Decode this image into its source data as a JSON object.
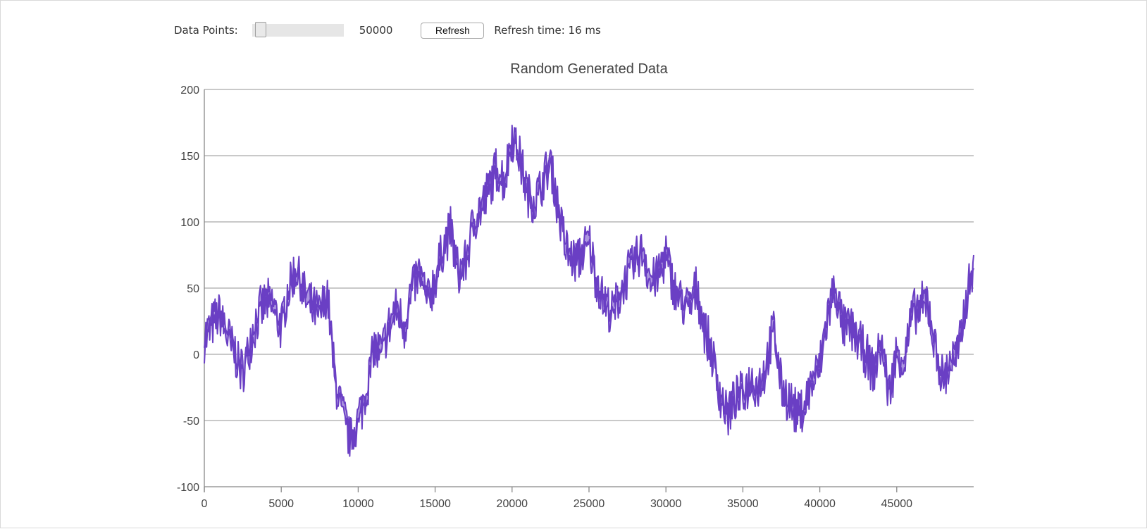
{
  "controls": {
    "points_label": "Data Points:",
    "points_value": "50000",
    "points_slider_fraction": 0.04,
    "refresh_label": "Refresh",
    "refresh_time": "Refresh time: 16 ms"
  },
  "chart_data": {
    "type": "area",
    "title": "Random Generated Data",
    "xlabel": "",
    "ylabel": "",
    "xlim": [
      0,
      50000
    ],
    "ylim": [
      -100,
      200
    ],
    "x_ticks": [
      0,
      5000,
      10000,
      15000,
      20000,
      25000,
      30000,
      35000,
      40000,
      45000
    ],
    "y_ticks": [
      200,
      150,
      100,
      50,
      0,
      -50,
      -100
    ],
    "grid": "horizontal",
    "legend": "none",
    "color": "#6a3fc4",
    "band_width": 10,
    "series": [
      {
        "x": [
          0,
          500,
          1000,
          1500,
          2000,
          2500,
          3000,
          3500,
          4000,
          4500,
          5000,
          5500,
          6000,
          6500,
          7000,
          7500,
          8000,
          8500,
          9000,
          9500,
          10000,
          10500,
          11000,
          11500,
          12000,
          12500,
          13000,
          13500,
          14000,
          14500,
          15000,
          15500,
          16000,
          16500,
          17000,
          17500,
          18000,
          18500,
          19000,
          19500,
          20000,
          20500,
          21000,
          21500,
          22000,
          22500,
          23000,
          23500,
          24000,
          24500,
          25000,
          25500,
          26000,
          26500,
          27000,
          27500,
          28000,
          28500,
          29000,
          29500,
          30000,
          30500,
          31000,
          31500,
          32000,
          32500,
          33000,
          33500,
          34000,
          34500,
          35000,
          35500,
          36000,
          36500,
          37000,
          37500,
          38000,
          38500,
          39000,
          39500,
          40000,
          40500,
          41000,
          41500,
          42000,
          42500,
          43000,
          43500,
          44000,
          44500,
          45000,
          45500,
          46000,
          46500,
          47000,
          47500,
          48000,
          48500,
          49000,
          49500,
          50000
        ],
        "values": [
          12,
          22,
          30,
          15,
          0,
          -15,
          10,
          30,
          40,
          35,
          20,
          50,
          65,
          45,
          35,
          30,
          45,
          -20,
          -45,
          -65,
          -50,
          -30,
          5,
          0,
          20,
          35,
          20,
          50,
          60,
          40,
          55,
          80,
          95,
          60,
          70,
          100,
          110,
          125,
          140,
          130,
          165,
          150,
          120,
          115,
          130,
          145,
          110,
          80,
          70,
          75,
          85,
          55,
          40,
          30,
          45,
          60,
          70,
          80,
          55,
          60,
          75,
          50,
          40,
          35,
          50,
          20,
          0,
          -30,
          -45,
          -35,
          -30,
          -20,
          -25,
          -10,
          20,
          -25,
          -35,
          -45,
          -40,
          -20,
          -10,
          30,
          50,
          20,
          20,
          10,
          0,
          -15,
          10,
          -30,
          0,
          -5,
          30,
          35,
          40,
          5,
          -20,
          -5,
          0,
          40,
          70
        ]
      }
    ]
  }
}
